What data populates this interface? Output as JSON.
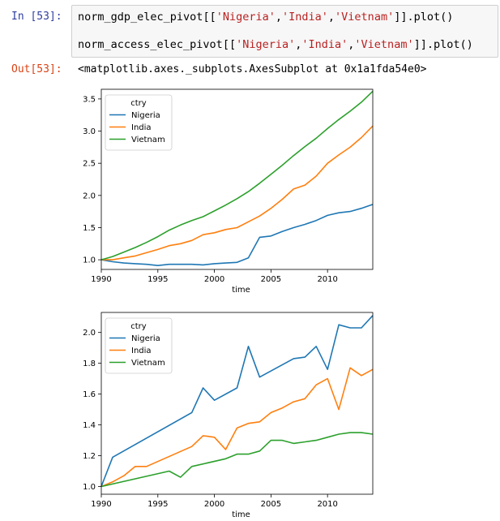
{
  "input_prompt": "In [53]:",
  "output_prompt": "Out[53]:",
  "code": {
    "line1": {
      "var": "norm_gdp_elec_pivot",
      "strings": [
        "'Nigeria'",
        "'India'",
        "'Vietnam'"
      ],
      "tail": ".plot()"
    },
    "line2": {
      "var": "norm_access_elec_pivot",
      "strings": [
        "'Nigeria'",
        "'India'",
        "'Vietnam'"
      ],
      "tail": ".plot()"
    }
  },
  "output_text": "<matplotlib.axes._subplots.AxesSubplot at 0x1a1fda54e0>",
  "colors": {
    "Nigeria": "#1f77b4",
    "India": "#ff7f0e",
    "Vietnam": "#2ca02c"
  },
  "chart_data": [
    {
      "type": "line",
      "xlabel": "time",
      "legend_title": "ctry",
      "legend_placement": "top-left",
      "xlim": [
        1990,
        2014
      ],
      "ylim": [
        0.85,
        3.65
      ],
      "xticks": [
        "1990",
        "1995",
        "2000",
        "2005",
        "2010"
      ],
      "yticks": [
        "1.0",
        "1.5",
        "2.0",
        "2.5",
        "3.0",
        "3.5"
      ],
      "x": [
        1990,
        1991,
        1992,
        1993,
        1994,
        1995,
        1996,
        1997,
        1998,
        1999,
        2000,
        2001,
        2002,
        2003,
        2004,
        2005,
        2006,
        2007,
        2008,
        2009,
        2010,
        2011,
        2012,
        2013,
        2014
      ],
      "series": [
        {
          "name": "Nigeria",
          "values": [
            1.0,
            0.97,
            0.95,
            0.94,
            0.93,
            0.91,
            0.93,
            0.93,
            0.93,
            0.92,
            0.94,
            0.95,
            0.96,
            1.03,
            1.35,
            1.37,
            1.44,
            1.5,
            1.55,
            1.61,
            1.69,
            1.73,
            1.75,
            1.8,
            1.86
          ]
        },
        {
          "name": "India",
          "values": [
            1.0,
            1.0,
            1.03,
            1.06,
            1.11,
            1.16,
            1.22,
            1.25,
            1.3,
            1.39,
            1.42,
            1.47,
            1.5,
            1.59,
            1.68,
            1.8,
            1.94,
            2.1,
            2.16,
            2.3,
            2.5,
            2.63,
            2.75,
            2.9,
            3.08
          ]
        },
        {
          "name": "Vietnam",
          "values": [
            1.0,
            1.05,
            1.12,
            1.19,
            1.27,
            1.36,
            1.46,
            1.54,
            1.61,
            1.67,
            1.76,
            1.85,
            1.95,
            2.06,
            2.19,
            2.33,
            2.47,
            2.62,
            2.76,
            2.89,
            3.04,
            3.18,
            3.31,
            3.45,
            3.62
          ]
        }
      ]
    },
    {
      "type": "line",
      "xlabel": "time",
      "legend_title": "ctry",
      "legend_placement": "top-left",
      "xlim": [
        1990,
        2014
      ],
      "ylim": [
        0.95,
        2.13
      ],
      "xticks": [
        "1990",
        "1995",
        "2000",
        "2005",
        "2010"
      ],
      "yticks": [
        "1.0",
        "1.2",
        "1.4",
        "1.6",
        "1.8",
        "2.0"
      ],
      "series": [
        {
          "name": "Nigeria",
          "x": [
            1990,
            1991,
            1998,
            1999,
            2000,
            2002,
            2003,
            2004,
            2007,
            2008,
            2009,
            2010,
            2011,
            2012,
            2013,
            2014
          ],
          "values": [
            1.0,
            1.19,
            1.48,
            1.64,
            1.56,
            1.64,
            1.91,
            1.71,
            1.83,
            1.84,
            1.91,
            1.76,
            2.05,
            2.03,
            2.03,
            2.11
          ]
        },
        {
          "name": "India",
          "x": [
            1990,
            1991,
            1992,
            1993,
            1994,
            1998,
            1999,
            2000,
            2001,
            2002,
            2003,
            2004,
            2005,
            2006,
            2007,
            2008,
            2009,
            2010,
            2011,
            2012,
            2013,
            2014
          ],
          "values": [
            1.0,
            1.03,
            1.07,
            1.13,
            1.13,
            1.26,
            1.33,
            1.32,
            1.24,
            1.38,
            1.41,
            1.42,
            1.48,
            1.51,
            1.55,
            1.57,
            1.66,
            1.7,
            1.5,
            1.77,
            1.72,
            1.76
          ]
        },
        {
          "name": "Vietnam",
          "x": [
            1990,
            1996,
            1997,
            1998,
            2001,
            2002,
            2003,
            2004,
            2005,
            2006,
            2007,
            2008,
            2009,
            2010,
            2011,
            2012,
            2013,
            2014
          ],
          "values": [
            1.0,
            1.1,
            1.06,
            1.13,
            1.18,
            1.21,
            1.21,
            1.23,
            1.3,
            1.3,
            1.28,
            1.29,
            1.3,
            1.32,
            1.34,
            1.35,
            1.35,
            1.34
          ]
        }
      ]
    }
  ]
}
